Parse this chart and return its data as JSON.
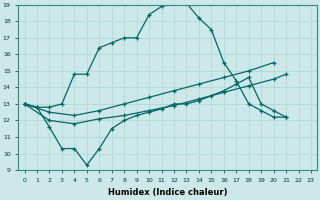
{
  "xlabel": "Humidex (Indice chaleur)",
  "xlim": [
    -0.5,
    23.5
  ],
  "ylim": [
    9,
    19
  ],
  "xticks": [
    0,
    1,
    2,
    3,
    4,
    5,
    6,
    7,
    8,
    9,
    10,
    11,
    12,
    13,
    14,
    15,
    16,
    17,
    18,
    19,
    20,
    21,
    22,
    23
  ],
  "yticks": [
    9,
    10,
    11,
    12,
    13,
    14,
    15,
    16,
    17,
    18,
    19
  ],
  "background_color": "#cce8e8",
  "grid_color": "#aad4d4",
  "line_color": "#006666",
  "line1_x": [
    0,
    1,
    2,
    3,
    4,
    5,
    6,
    7,
    8,
    9,
    10,
    11,
    12,
    13,
    14,
    15,
    16,
    17,
    18,
    19,
    20,
    21
  ],
  "line1_y": [
    13,
    12.8,
    12.8,
    13.0,
    14.8,
    14.8,
    16.4,
    16.7,
    17.0,
    17.0,
    18.4,
    18.9,
    19.1,
    19.1,
    18.2,
    17.5,
    15.5,
    14.4,
    13.0,
    12.6,
    12.2,
    12.2
  ],
  "line2_x": [
    0,
    2,
    4,
    6,
    8,
    10,
    12,
    14,
    16,
    18,
    20
  ],
  "line2_y": [
    13.0,
    12.5,
    12.3,
    12.6,
    13.0,
    13.4,
    13.8,
    14.2,
    14.6,
    15.0,
    15.5
  ],
  "line3_x": [
    0,
    2,
    4,
    6,
    8,
    10,
    12,
    14,
    16,
    18,
    20,
    21
  ],
  "line3_y": [
    13.0,
    12.0,
    11.8,
    12.1,
    12.3,
    12.6,
    12.9,
    13.3,
    13.7,
    14.1,
    14.5,
    14.8
  ],
  "line4_x": [
    0,
    1,
    2,
    3,
    4,
    5,
    6,
    7,
    8,
    9,
    10,
    11,
    12,
    13,
    14,
    15,
    16,
    17,
    18,
    19,
    20,
    21
  ],
  "line4_y": [
    13,
    12.8,
    11.6,
    10.3,
    10.3,
    9.3,
    10.3,
    11.5,
    12.0,
    12.3,
    12.5,
    12.7,
    13.0,
    13.0,
    13.2,
    13.5,
    13.8,
    14.2,
    14.6,
    13.0,
    12.6,
    12.2
  ]
}
